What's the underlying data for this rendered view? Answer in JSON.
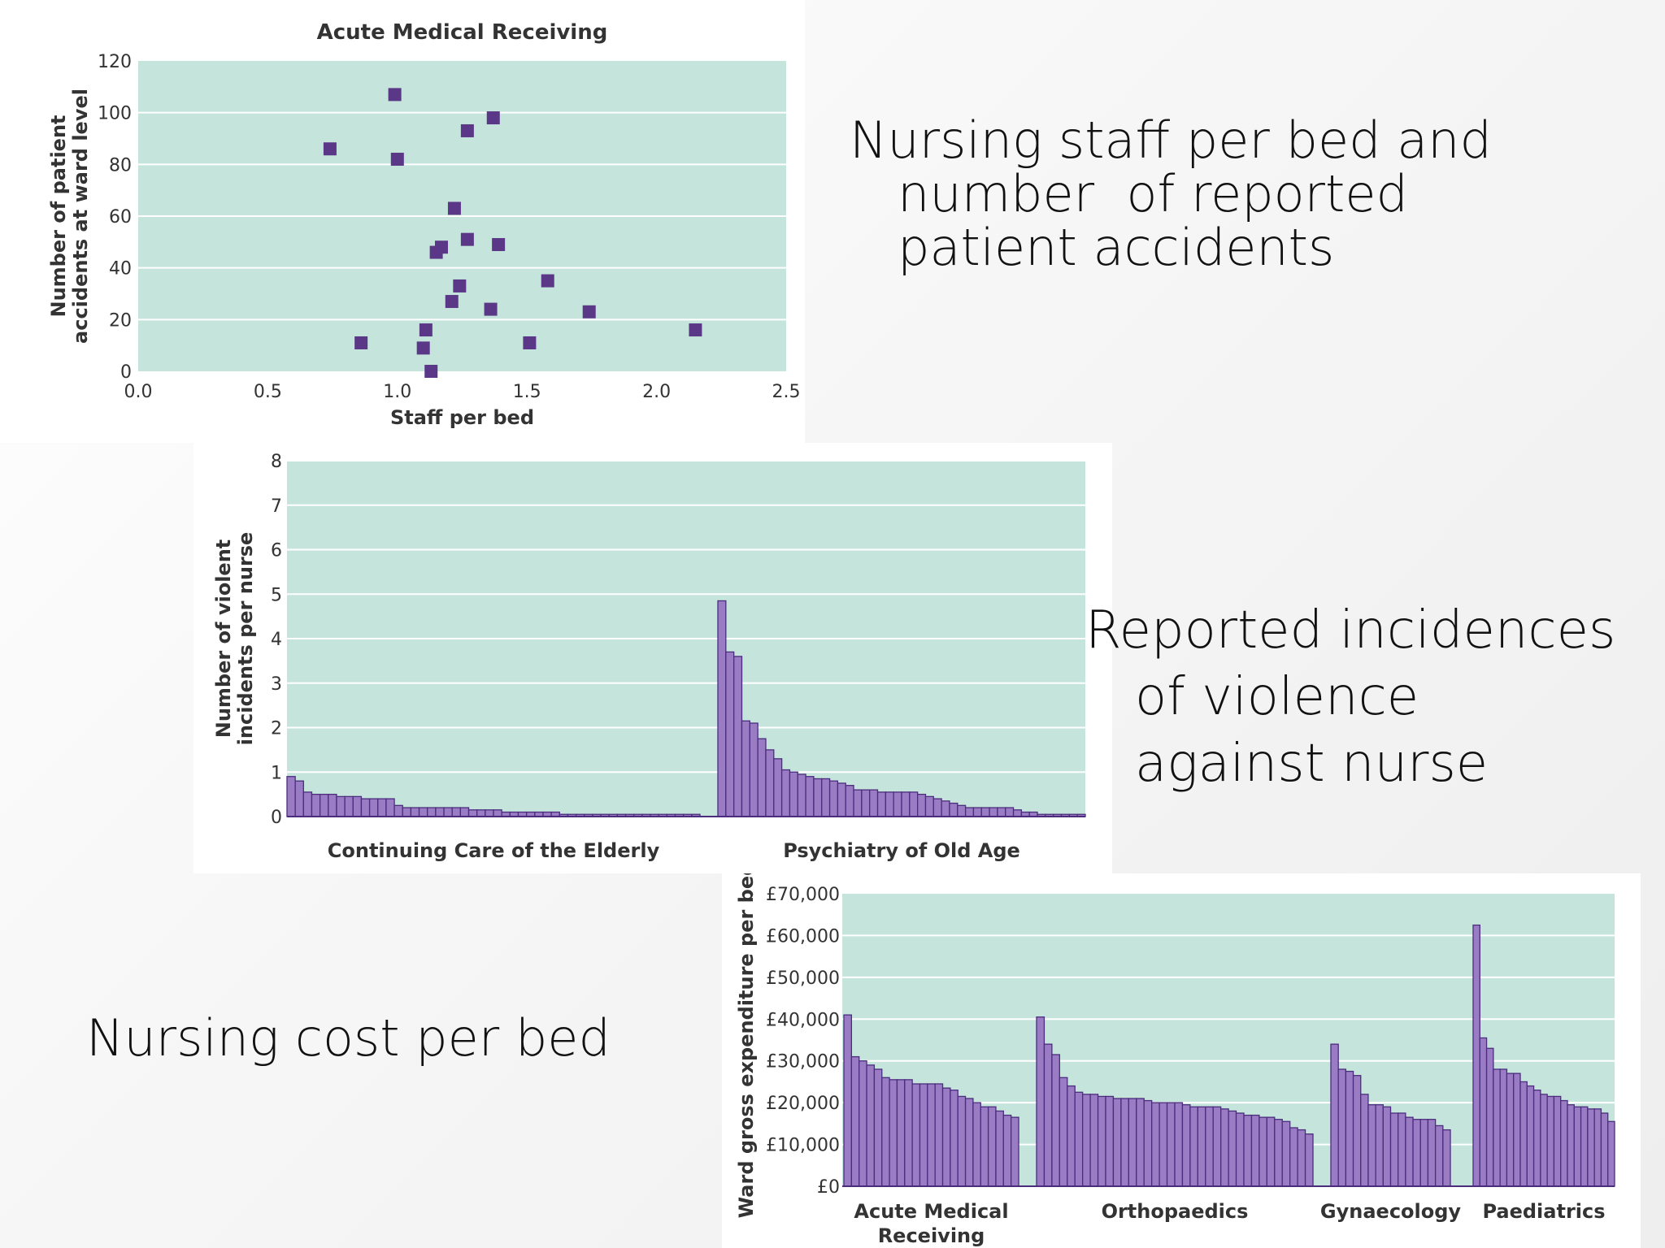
{
  "captions": {
    "accidents": "Nursing staff per bed and\n   number  of reported\n   patient accidents",
    "violence": "Reported incidences\n   of violence\n   against nurse",
    "cost": "Nursing cost per bed"
  },
  "colors": {
    "plot_bg": "#c5e5dc",
    "grid": "#ffffff",
    "mark_fill": "#9a7cc4",
    "mark_stroke": "#4b2c7d",
    "point": "#5b3787"
  },
  "chart_data": [
    {
      "type": "scatter",
      "title": "Acute Medical Receiving",
      "xlabel": "Staff per bed",
      "ylabel": "Number of patient accidents at ward level",
      "ylabel_lines": [
        "Number of patient",
        "accidents at ward level"
      ],
      "xlim": [
        0,
        2.5
      ],
      "ylim": [
        0,
        120
      ],
      "xticks": [
        "0.0",
        "0.5",
        "1.0",
        "1.5",
        "2.0",
        "2.5"
      ],
      "yticks": [
        "0",
        "20",
        "40",
        "60",
        "80",
        "100",
        "120"
      ],
      "grid": true,
      "x": [
        0.99,
        1.37,
        1.27,
        0.74,
        1.0,
        1.22,
        1.27,
        1.39,
        1.17,
        1.15,
        1.58,
        1.24,
        1.21,
        1.36,
        1.74,
        2.15,
        0.86,
        1.11,
        1.51,
        1.1,
        1.13
      ],
      "y": [
        107,
        98,
        93,
        86,
        82,
        63,
        51,
        49,
        48,
        46,
        35,
        33,
        27,
        24,
        23,
        16,
        11,
        16,
        11,
        9,
        0
      ]
    },
    {
      "type": "bar",
      "ylabel": "Number of violent incidents per nurse",
      "ylabel_lines": [
        "Number of violent",
        "incidents per nurse"
      ],
      "ylim": [
        0,
        8
      ],
      "yticks": [
        "0",
        "1",
        "2",
        "3",
        "4",
        "5",
        "6",
        "7",
        "8"
      ],
      "grid": true,
      "groups": [
        {
          "name": "Continuing Care of the Elderly",
          "values": [
            0.9,
            0.8,
            0.55,
            0.5,
            0.5,
            0.5,
            0.45,
            0.45,
            0.45,
            0.4,
            0.4,
            0.4,
            0.4,
            0.25,
            0.2,
            0.2,
            0.2,
            0.2,
            0.2,
            0.2,
            0.2,
            0.2,
            0.15,
            0.15,
            0.15,
            0.15,
            0.1,
            0.1,
            0.1,
            0.1,
            0.1,
            0.1,
            0.1,
            0.05,
            0.05,
            0.05,
            0.05,
            0.05,
            0.05,
            0.05,
            0.05,
            0.05,
            0.05,
            0.05,
            0.05,
            0.05,
            0.05,
            0.05,
            0.05,
            0.05
          ]
        },
        {
          "name": "Psychiatry of Old Age",
          "values": [
            4.85,
            3.7,
            3.6,
            2.15,
            2.1,
            1.75,
            1.5,
            1.3,
            1.05,
            1.0,
            0.95,
            0.9,
            0.85,
            0.85,
            0.8,
            0.75,
            0.7,
            0.6,
            0.6,
            0.6,
            0.55,
            0.55,
            0.55,
            0.55,
            0.55,
            0.5,
            0.45,
            0.4,
            0.35,
            0.3,
            0.25,
            0.2,
            0.2,
            0.2,
            0.2,
            0.2,
            0.2,
            0.15,
            0.1,
            0.1,
            0.05,
            0.05,
            0.05,
            0.05,
            0.05,
            0.05
          ]
        }
      ]
    },
    {
      "type": "bar",
      "ylabel": "Ward gross expenditure per bed",
      "ylim": [
        0,
        70000
      ],
      "yticks": [
        "£0",
        "£10,000",
        "£20,000",
        "£30,000",
        "£40,000",
        "£50,000",
        "£60,000",
        "£70,000"
      ],
      "grid": true,
      "groups": [
        {
          "name": "Acute Medical Receiving",
          "name_lines": [
            "Acute Medical",
            "Receiving"
          ],
          "values": [
            41000,
            31000,
            30000,
            29000,
            28000,
            26000,
            25500,
            25500,
            25500,
            24500,
            24500,
            24500,
            24500,
            23500,
            23000,
            21500,
            21000,
            20000,
            19000,
            19000,
            18000,
            17000,
            16500
          ]
        },
        {
          "name": "Orthopaedics",
          "name_lines": [
            "Orthopaedics"
          ],
          "values": [
            40500,
            34000,
            31500,
            26000,
            24000,
            22500,
            22000,
            22000,
            21500,
            21500,
            21000,
            21000,
            21000,
            21000,
            20500,
            20000,
            20000,
            20000,
            20000,
            19500,
            19000,
            19000,
            19000,
            19000,
            18500,
            18000,
            17500,
            17000,
            17000,
            16500,
            16500,
            16000,
            15500,
            14000,
            13500,
            12500
          ]
        },
        {
          "name": "Gynaecology",
          "name_lines": [
            "Gynaecology"
          ],
          "values": [
            34000,
            28000,
            27500,
            26500,
            22000,
            19500,
            19500,
            19000,
            17500,
            17500,
            16500,
            16000,
            16000,
            16000,
            14500,
            13500
          ]
        },
        {
          "name": "Paediatrics",
          "name_lines": [
            "Paediatrics"
          ],
          "values": [
            62500,
            35500,
            33000,
            28000,
            28000,
            27000,
            27000,
            25000,
            24000,
            23000,
            22000,
            21500,
            21500,
            20500,
            19500,
            19000,
            19000,
            18500,
            18500,
            17500,
            15500
          ]
        }
      ]
    }
  ]
}
